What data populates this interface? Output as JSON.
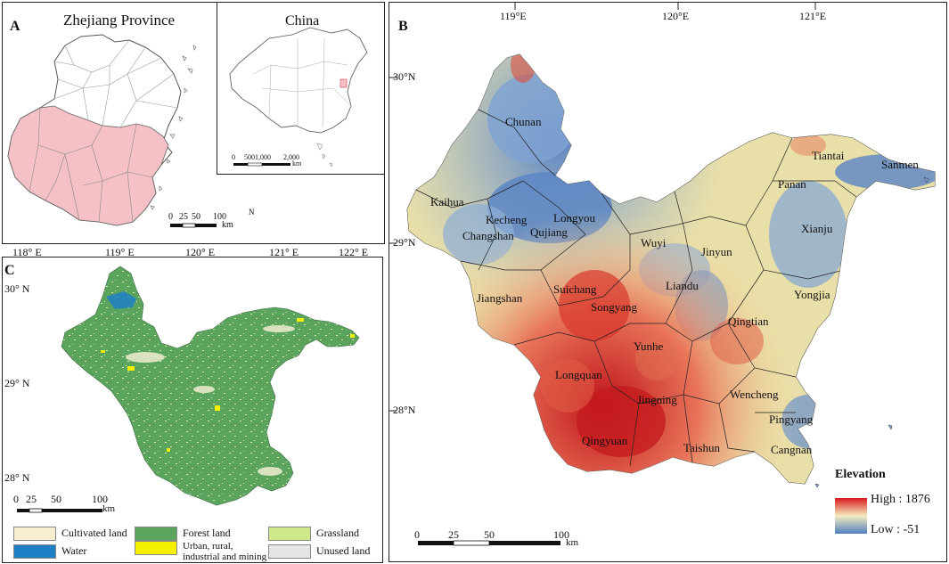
{
  "panel_a": {
    "letter": "A",
    "title": "Zhejiang Province",
    "inset_title": "China",
    "inset_scale_ticks": [
      "0",
      "500",
      "1,000",
      "2,000"
    ],
    "inset_scale_unit": "km",
    "scale_ticks": [
      "0",
      "25",
      "50",
      "100"
    ],
    "scale_unit": "km",
    "north": "N"
  },
  "panel_b": {
    "letter": "B",
    "lon_ticks": [
      "119°E",
      "120°E",
      "121°E"
    ],
    "lat_ticks": [
      "30°N",
      "29°N",
      "28°N"
    ],
    "counties": [
      "Chunan",
      "Kaihua",
      "Kecheng",
      "Longyou",
      "Changshan",
      "Qujiang",
      "Tiantai",
      "Sanmen",
      "Panan",
      "Xianju",
      "Wuyi",
      "Jinyun",
      "Jiangshan",
      "Suichang",
      "Liandu",
      "Yongjia",
      "Songyang",
      "Qingtian",
      "Yunhe",
      "Longquan",
      "Jingning",
      "Wencheng",
      "Pingyang",
      "Qingyuan",
      "Taishun",
      "Cangnan"
    ],
    "legend_title": "Elevation",
    "legend_high": "High : 1876",
    "legend_low": "Low : -51",
    "scale_ticks": [
      "0",
      "25",
      "50",
      "100"
    ],
    "scale_unit": "km"
  },
  "panel_c": {
    "letter": "C",
    "lon_ticks": [
      "118° E",
      "119° E",
      "120° E",
      "121° E",
      "122° E"
    ],
    "lat_ticks": [
      "30° N",
      "29° N",
      "28° N"
    ],
    "scale_ticks": [
      "0",
      "25",
      "50",
      "100"
    ],
    "scale_unit": "km",
    "legend": [
      {
        "label": "Cultivated land",
        "color": "#f7efd0"
      },
      {
        "label": "Forest land",
        "color": "#5aa45e"
      },
      {
        "label": "Grassland",
        "color": "#cfe88a"
      },
      {
        "label": "Water",
        "color": "#1e7fc4"
      },
      {
        "label": "Urban, rural, industrial and mining land",
        "color": "#f4f000"
      },
      {
        "label": "Unused land",
        "color": "#e6e6e6"
      }
    ]
  },
  "colors": {
    "highlight_pink": "#f5c1c6",
    "elev_high": "#d7191c",
    "elev_mid": "#f5eec0",
    "elev_low": "#4f7fc0",
    "forest": "#5aa45e"
  }
}
